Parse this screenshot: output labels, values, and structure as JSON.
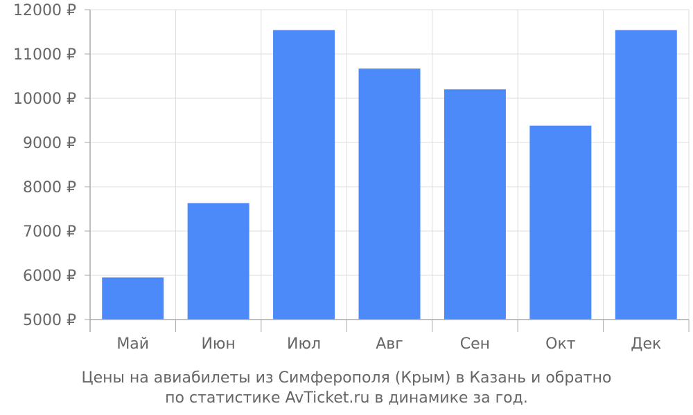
{
  "chart_data": {
    "type": "bar",
    "categories": [
      "Май",
      "Июн",
      "Июл",
      "Авг",
      "Сен",
      "Окт",
      "Дек"
    ],
    "values": [
      5950,
      7630,
      11540,
      10670,
      10200,
      9380,
      11540
    ],
    "ylim": [
      5000,
      12000
    ],
    "yticks": [
      5000,
      6000,
      7000,
      8000,
      9000,
      10000,
      11000,
      12000
    ],
    "y_tick_suffix": " ₽",
    "grid": true,
    "colors": {
      "bar": "#4d8af9",
      "grid": "#dddddd",
      "axis": "#aaaaaa",
      "text": "#666666"
    }
  },
  "caption": {
    "line1": "Цены на авиабилеты из Симферополя (Крым) в Казань и обратно",
    "line2": "по статистике AvTicket.ru в динамике за год."
  }
}
